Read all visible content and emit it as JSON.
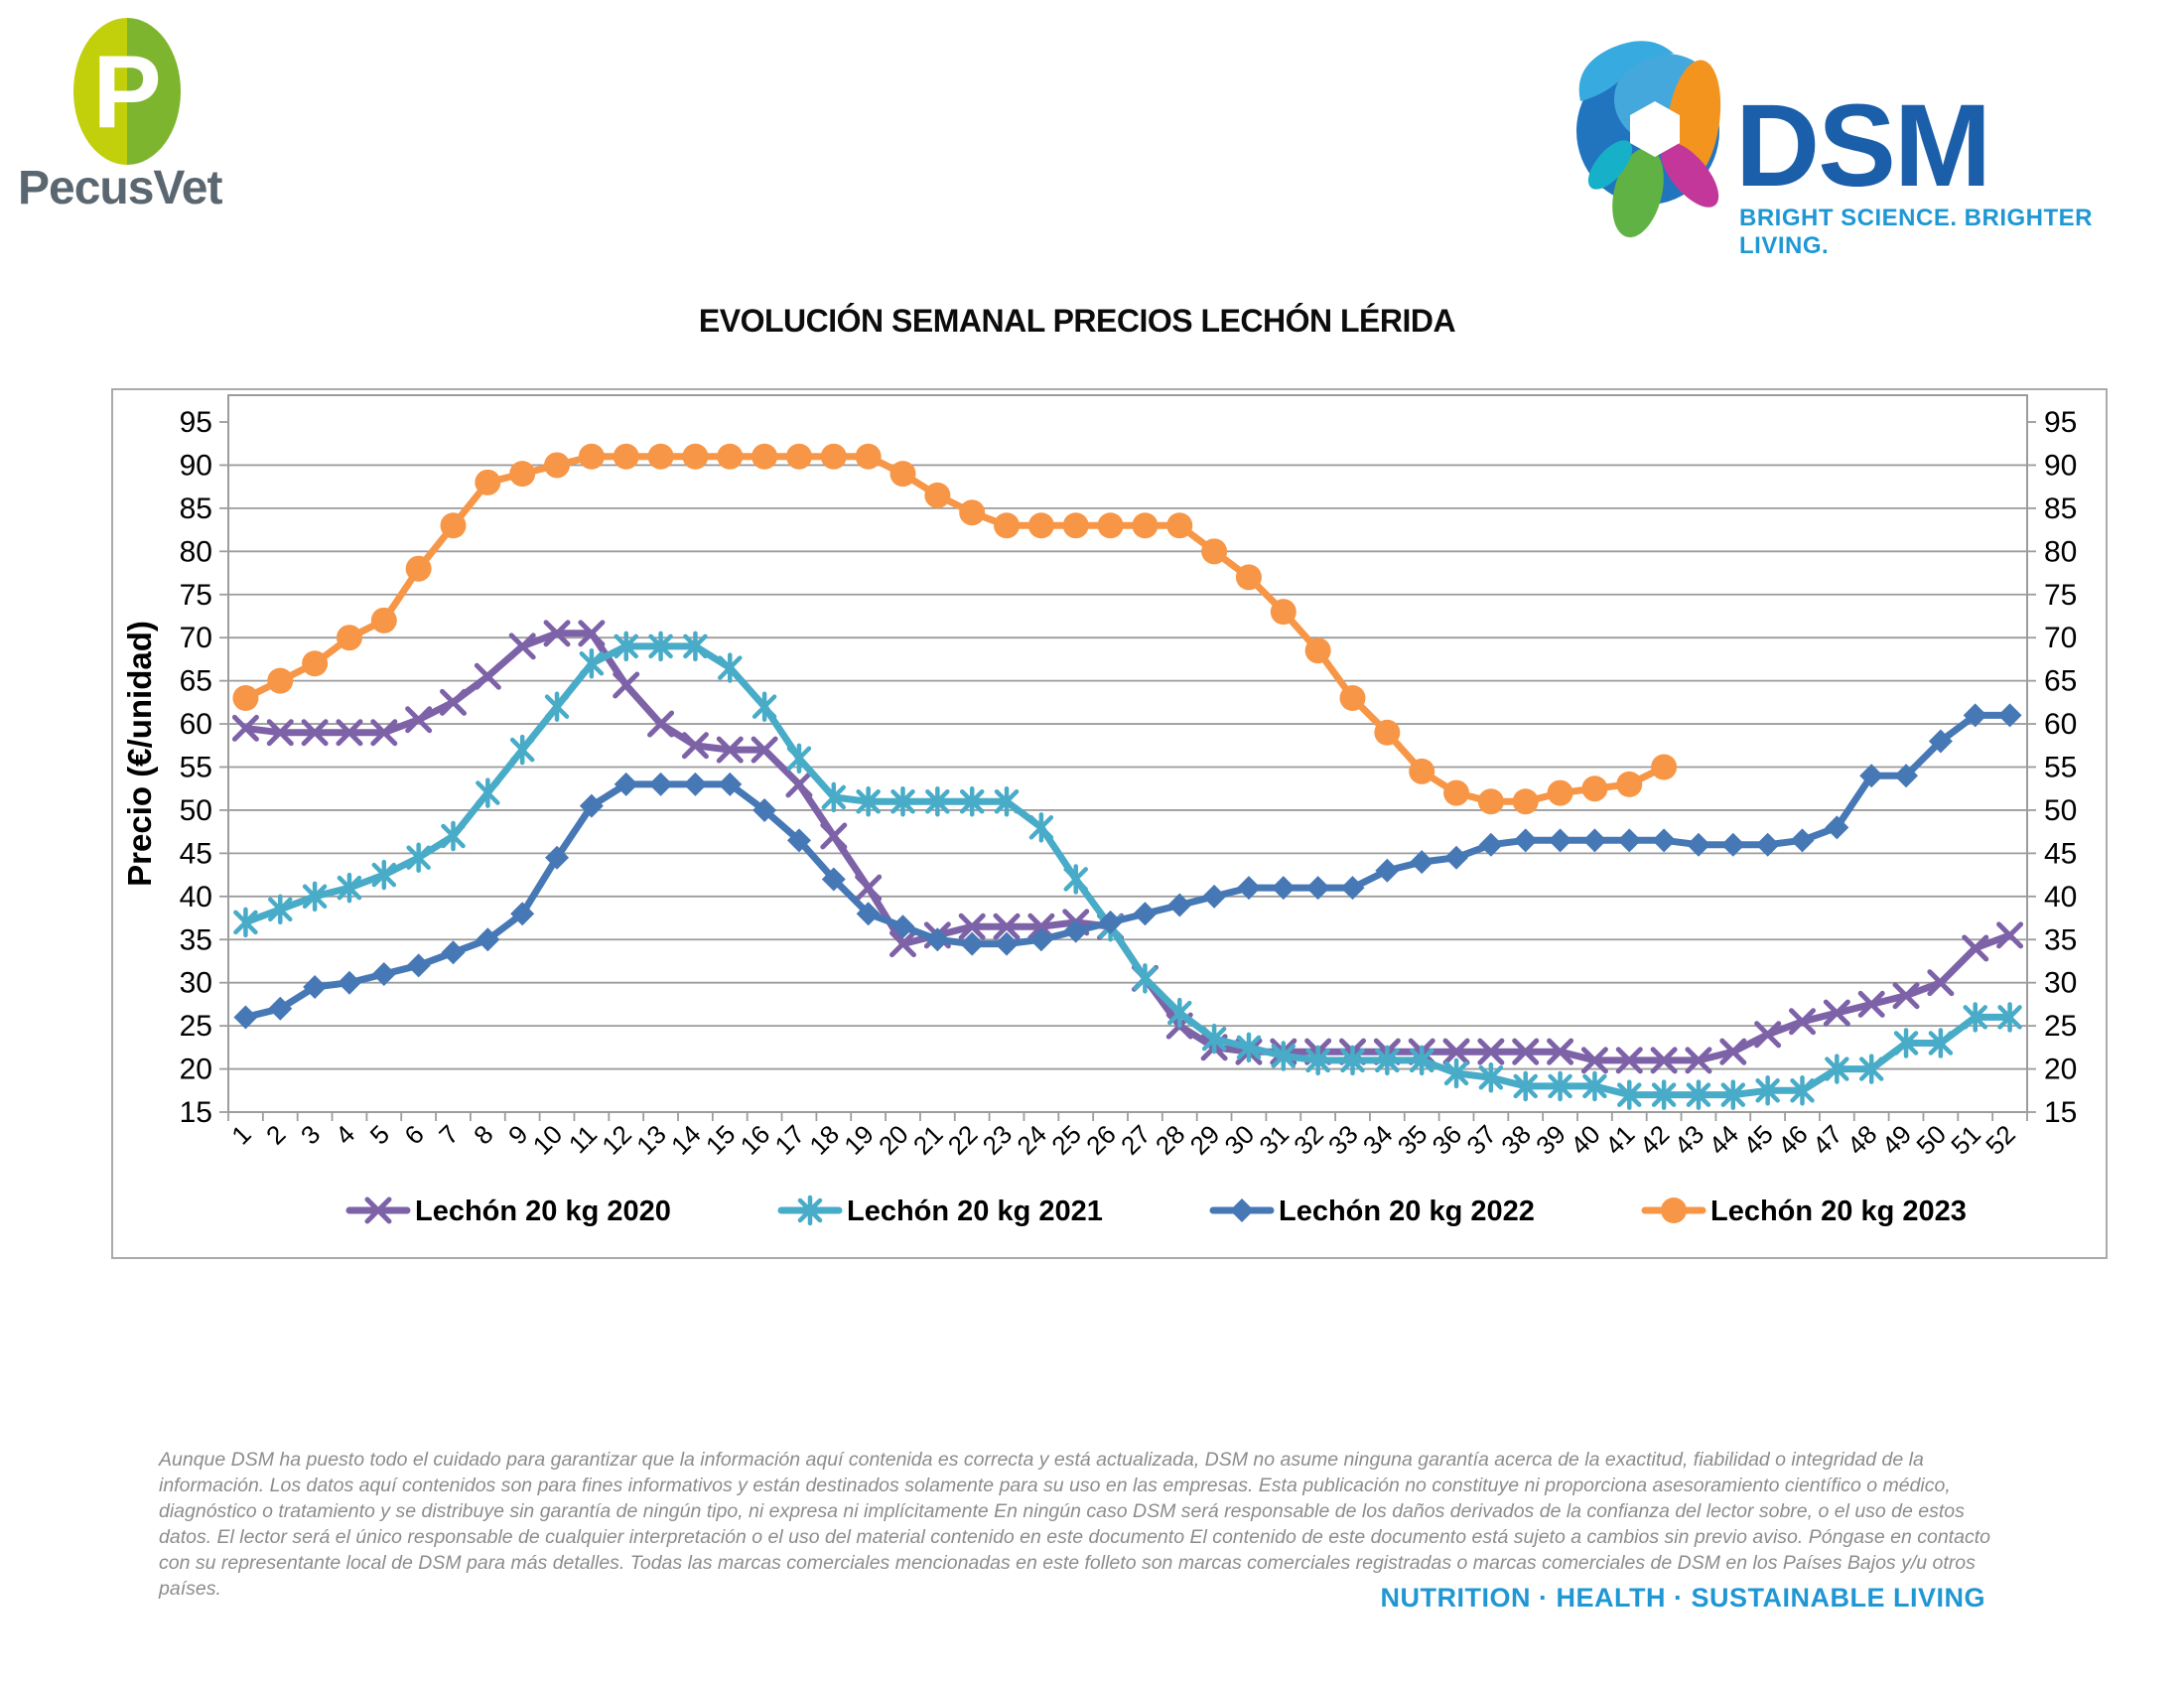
{
  "header": {
    "pecusvet_name": "PecusVet",
    "dsm_name": "DSM",
    "dsm_tagline": "BRIGHT SCIENCE. BRIGHTER LIVING."
  },
  "title": "EVOLUCIÓN SEMANAL PRECIOS LECHÓN LÉRIDA",
  "chart_data": {
    "type": "line",
    "title": "EVOLUCIÓN SEMANAL PRECIOS LECHÓN LÉRIDA",
    "xlabel": "",
    "ylabel": "Precio (€/unidad)",
    "ylim": [
      15,
      95
    ],
    "ytick_step": 5,
    "grid": true,
    "legend_position": "bottom",
    "x": [
      1,
      2,
      3,
      4,
      5,
      6,
      7,
      8,
      9,
      10,
      11,
      12,
      13,
      14,
      15,
      16,
      17,
      18,
      19,
      20,
      21,
      22,
      23,
      24,
      25,
      26,
      27,
      28,
      29,
      30,
      31,
      32,
      33,
      34,
      35,
      36,
      37,
      38,
      39,
      40,
      41,
      42,
      43,
      44,
      45,
      46,
      47,
      48,
      49,
      50,
      51,
      52
    ],
    "series": [
      {
        "name": "Lechón 20 kg 2020",
        "color": "#7E62A8",
        "marker": "x",
        "values": [
          59.5,
          59,
          59,
          59,
          59,
          60.5,
          62.5,
          65.5,
          69,
          70.5,
          70.5,
          64.5,
          60,
          57.5,
          57,
          57,
          53,
          47,
          41,
          34.5,
          35.5,
          36.5,
          36.5,
          36.5,
          37,
          36.5,
          30.5,
          25,
          22.5,
          22,
          22,
          22,
          22,
          22,
          22,
          22,
          22,
          22,
          22,
          21,
          21,
          21,
          21,
          22,
          24,
          25.5,
          26.5,
          27.5,
          28.5,
          30,
          34,
          35.5
        ]
      },
      {
        "name": "Lechón 20 kg 2021",
        "color": "#48ACC8",
        "marker": "asterisk",
        "values": [
          37,
          38.5,
          40,
          41,
          42.5,
          44.5,
          47,
          52,
          57,
          62,
          67,
          69,
          69,
          69,
          66.5,
          62,
          56,
          51.5,
          51,
          51,
          51,
          51,
          51,
          48,
          42,
          36.5,
          30.5,
          26.5,
          23.5,
          22.5,
          21.5,
          21,
          21,
          21,
          21,
          19.5,
          19,
          18,
          18,
          18,
          17,
          17,
          17,
          17,
          17.5,
          17.5,
          20,
          20,
          23,
          23,
          26,
          26
        ]
      },
      {
        "name": "Lechón 20 kg 2022",
        "color": "#4678B6",
        "marker": "diamond",
        "values": [
          26,
          27,
          29.5,
          30,
          31,
          32,
          33.5,
          35,
          38,
          44.5,
          50.5,
          53,
          53,
          53,
          53,
          50,
          46.5,
          42,
          38,
          36.5,
          35,
          34.5,
          34.5,
          35,
          36,
          37,
          38,
          39,
          40,
          41,
          41,
          41,
          41,
          43,
          44,
          44.5,
          46,
          46.5,
          46.5,
          46.5,
          46.5,
          46.5,
          46,
          46,
          46,
          46.5,
          48,
          54,
          54,
          58,
          61,
          61
        ]
      },
      {
        "name": "Lechón 20 kg 2023",
        "color": "#F79646",
        "marker": "circle",
        "values": [
          63,
          65,
          67,
          70,
          72,
          78,
          83,
          88,
          89,
          90,
          91,
          91,
          91,
          91,
          91,
          91,
          91,
          91,
          91,
          89,
          86.5,
          84.5,
          83,
          83,
          83,
          83,
          83,
          83,
          80,
          77,
          73,
          68.5,
          63,
          59,
          54.5,
          52,
          51,
          51,
          52,
          52.5,
          53,
          55
        ]
      }
    ]
  },
  "footer": {
    "disclaimer": "Aunque DSM ha puesto todo el cuidado para garantizar que la información aquí contenida es correcta y está actualizada, DSM no asume ninguna garantía acerca de la exactitud, fiabilidad o integridad de la información. Los datos aquí contenidos son para fines informativos y están destinados solamente para su uso en las empresas. Esta publicación no constituye ni proporciona asesoramiento científico o médico, diagnóstico o tratamiento y se distribuye sin garantía de ningún tipo, ni expresa ni implícitamente En ningún caso DSM será responsable de los daños derivados de la confianza del lector sobre, o el uso de estos datos. El lector será el único responsable de cualquier interpretación o el uso del material contenido en este documento El contenido de este documento está sujeto a cambios sin previo aviso. Póngase en contacto con su representante local de DSM para más detalles. Todas las marcas comerciales mencionadas en este folleto son marcas comerciales registradas o marcas comerciales de DSM en los Países Bajos y/u otros países.",
    "tagline": "NUTRITION · HEALTH · SUSTAINABLE LIVING"
  },
  "colors": {
    "grid": "#9C9C9C",
    "axis_text": "#000000",
    "pecusvet_left": "#C2CF0B",
    "pecusvet_right": "#7DB52F",
    "pecusvet_text": "#5B6770",
    "dsm_blue": "#1B5FAA",
    "dsm_tagline": "#1F97D4",
    "footer_text": "#8C8C8C",
    "footer_tagline": "#1F97D4"
  }
}
